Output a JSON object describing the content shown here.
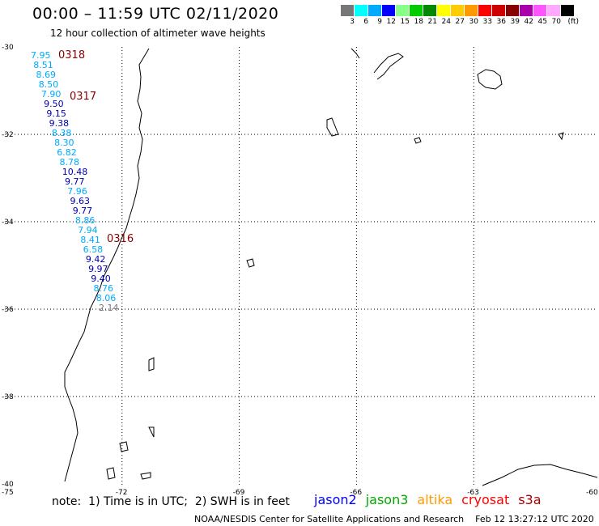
{
  "header": {
    "title": "00:00 – 11:59 UTC 02/11/2020",
    "subtitle": "12 hour collection of altimeter wave heights"
  },
  "legend": {
    "colors": [
      "#777777",
      "#00ffff",
      "#00aaff",
      "#0000ff",
      "#88ff88",
      "#00cc00",
      "#008800",
      "#ffff00",
      "#ffcc00",
      "#ff9900",
      "#ff0000",
      "#cc0000",
      "#880000",
      "#aa00aa",
      "#ff55ff",
      "#ffaaff",
      "#000000"
    ],
    "labels": [
      "3",
      "6",
      "9",
      "12",
      "15",
      "18",
      "21",
      "24",
      "27",
      "30",
      "33",
      "36",
      "39",
      "42",
      "45",
      "70"
    ],
    "unit": "(ft)"
  },
  "axes": {
    "lat_labels": [
      {
        "lat": -30,
        "text": "-30"
      },
      {
        "lat": -32,
        "text": "-32"
      },
      {
        "lat": -34,
        "text": "-34"
      },
      {
        "lat": -36,
        "text": "-36"
      },
      {
        "lat": -38,
        "text": "-38"
      },
      {
        "lat": -40,
        "text": "-40"
      }
    ],
    "lon_labels": [
      {
        "lon": -75,
        "text": "-75"
      },
      {
        "lon": -72,
        "text": "-72"
      },
      {
        "lon": -69,
        "text": "-69"
      },
      {
        "lon": -66,
        "text": "-66"
      },
      {
        "lon": -63,
        "text": "-63"
      },
      {
        "lon": -60,
        "text": "-60"
      }
    ],
    "grid_lons": [
      -72,
      -69,
      -66,
      -63
    ],
    "grid_lats": [
      -32,
      -34,
      -36,
      -38
    ]
  },
  "measurements": [
    {
      "v": "7.95",
      "c": "#00aaff"
    },
    {
      "v": "8.51",
      "c": "#00aaff"
    },
    {
      "v": "8.69",
      "c": "#00aaff"
    },
    {
      "v": "8.50",
      "c": "#00aaff"
    },
    {
      "v": "7.90",
      "c": "#00aaff"
    },
    {
      "v": "9.50",
      "c": "#0000aa"
    },
    {
      "v": "9.15",
      "c": "#0000aa"
    },
    {
      "v": "9.38",
      "c": "#0000aa"
    },
    {
      "v": "8.38",
      "c": "#00aaff"
    },
    {
      "v": "8.30",
      "c": "#00aaff"
    },
    {
      "v": "6.82",
      "c": "#00aaff"
    },
    {
      "v": "8.78",
      "c": "#00aaff"
    },
    {
      "v": "10.48",
      "c": "#0000aa"
    },
    {
      "v": "9.77",
      "c": "#0000aa"
    },
    {
      "v": "7.96",
      "c": "#00aaff"
    },
    {
      "v": "9.63",
      "c": "#0000aa"
    },
    {
      "v": "9.77",
      "c": "#0000aa"
    },
    {
      "v": "8.86",
      "c": "#00aaff"
    },
    {
      "v": "7.94",
      "c": "#00aaff"
    },
    {
      "v": "8.41",
      "c": "#00aaff"
    },
    {
      "v": "6.58",
      "c": "#00aaff"
    },
    {
      "v": "9.42",
      "c": "#0000aa"
    },
    {
      "v": "9.97",
      "c": "#0000aa"
    },
    {
      "v": "9.40",
      "c": "#0000aa"
    },
    {
      "v": "8.76",
      "c": "#00aaff"
    },
    {
      "v": "8.06",
      "c": "#00aaff"
    },
    {
      "v": "2.14",
      "c": "#777777"
    }
  ],
  "pass_labels": [
    {
      "text": "0318",
      "color": "#880000"
    },
    {
      "text": "0317",
      "color": "#880000"
    },
    {
      "text": "0316",
      "color": "#880000"
    }
  ],
  "footer": {
    "note": "note:  1) Time is in UTC;  2) SWH is in feet",
    "satellites": [
      {
        "name": "jason2",
        "color": "#0000ff"
      },
      {
        "name": "jason3",
        "color": "#00aa00"
      },
      {
        "name": "altika",
        "color": "#ff9900"
      },
      {
        "name": "cryosat",
        "color": "#ff0000"
      },
      {
        "name": "s3a",
        "color": "#aa0000"
      }
    ],
    "credit": "NOAA/NESDIS Center for Satellite Applications and Research    Feb 12 13:27:12 UTC 2020"
  }
}
